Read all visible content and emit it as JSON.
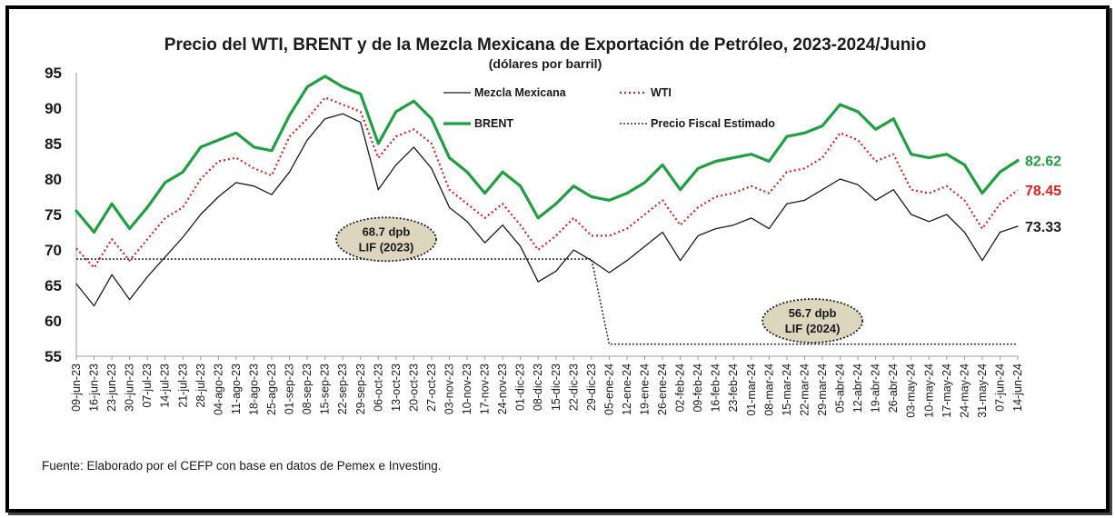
{
  "chart_data": {
    "type": "line",
    "title": "Precio del WTI, BRENT y de la Mezcla Mexicana de Exportación de Petróleo, 2023-2024/Junio",
    "subtitle": "(dólares por barril)",
    "source": "Fuente: Elaborado por el CEFP con base en datos de Pemex e Investing.",
    "ylim": [
      55,
      95
    ],
    "yticks": [
      55,
      60,
      65,
      70,
      75,
      80,
      85,
      90,
      95
    ],
    "grid": false,
    "legend_position": "top-center",
    "x_tick_labels": [
      "09-jun-23",
      "16-jun-23",
      "23-jun-23",
      "30-jun-23",
      "07-jul-23",
      "14-jul-23",
      "21-jul-23",
      "28-jul-23",
      "04-ago-23",
      "11-ago-23",
      "18-ago-23",
      "25-ago-23",
      "01-sep-23",
      "08-sep-23",
      "15-sep-23",
      "22-sep-23",
      "29-sep-23",
      "06-oct-23",
      "13-oct-23",
      "20-oct-23",
      "27-oct-23",
      "03-nov-23",
      "10-nov-23",
      "17-nov-23",
      "24-nov-23",
      "01-dic-23",
      "08-dic-23",
      "15-dic-23",
      "22-dic-23",
      "29-dic-23",
      "05-ene-24",
      "12-ene-24",
      "19-ene-24",
      "26-ene-24",
      "02-feb-24",
      "09-feb-24",
      "16-feb-24",
      "23-feb-24",
      "01-mar-24",
      "08-mar-24",
      "15-mar-24",
      "22-mar-24",
      "29-mar-24",
      "05-abr-24",
      "12-abr-24",
      "19-abr-24",
      "26-abr-24",
      "03-may-24",
      "10-may-24",
      "17-may-24",
      "24-may-24",
      "31-may-24",
      "07-jun-24",
      "14-jun-24"
    ],
    "series": [
      {
        "name": "Mezcla Mexicana",
        "color": "#1a1a1a",
        "style": "solid",
        "end_label": "73.33",
        "values": [
          65.2,
          62.1,
          66.5,
          63.0,
          66.2,
          69.0,
          71.8,
          75.0,
          77.5,
          79.5,
          79.0,
          77.8,
          81.0,
          85.5,
          88.5,
          89.2,
          88.0,
          78.5,
          82.0,
          84.5,
          81.5,
          76.0,
          74.0,
          71.0,
          73.5,
          70.5,
          65.5,
          67.0,
          70.0,
          68.5,
          66.8,
          68.5,
          70.5,
          72.5,
          68.5,
          72.0,
          73.0,
          73.5,
          74.5,
          73.0,
          76.5,
          77.0,
          78.5,
          80.0,
          79.2,
          77.0,
          78.5,
          75.0,
          74.0,
          75.0,
          72.5,
          68.5,
          72.5,
          73.33
        ]
      },
      {
        "name": "WTI",
        "color": "#e02020",
        "style": "dotted",
        "end_label": "78.45",
        "values": [
          70.2,
          67.5,
          71.5,
          68.5,
          71.5,
          74.5,
          76.0,
          80.0,
          82.5,
          83.0,
          81.5,
          80.5,
          86.0,
          88.5,
          91.5,
          90.5,
          89.5,
          83.0,
          86.0,
          87.0,
          85.0,
          78.5,
          76.5,
          74.5,
          76.5,
          73.5,
          70.0,
          72.0,
          74.5,
          72.0,
          72.0,
          73.0,
          75.0,
          77.0,
          73.5,
          76.0,
          77.5,
          78.0,
          79.0,
          78.0,
          81.0,
          81.5,
          83.0,
          86.5,
          85.5,
          82.5,
          83.5,
          78.5,
          78.0,
          79.0,
          77.0,
          73.0,
          76.5,
          78.45
        ]
      },
      {
        "name": "BRENT",
        "color": "#1fa040",
        "style": "solid-thick",
        "end_label": "82.62",
        "values": [
          75.5,
          72.5,
          76.5,
          73.0,
          76.0,
          79.5,
          81.0,
          84.5,
          85.5,
          86.5,
          84.5,
          84.0,
          89.0,
          93.0,
          94.5,
          93.0,
          92.0,
          85.0,
          89.5,
          91.0,
          88.5,
          83.0,
          81.0,
          78.0,
          81.0,
          79.0,
          74.5,
          76.5,
          79.0,
          77.5,
          77.0,
          78.0,
          79.5,
          82.0,
          78.5,
          81.5,
          82.5,
          83.0,
          83.5,
          82.5,
          86.0,
          86.5,
          87.5,
          90.5,
          89.5,
          87.0,
          88.5,
          83.5,
          83.0,
          83.5,
          82.0,
          78.0,
          81.0,
          82.62
        ]
      },
      {
        "name": "Precio Fiscal Estimado",
        "color": "#333333",
        "style": "dotted-fine",
        "segments": [
          {
            "from": "09-jun-23",
            "to": "29-dic-23",
            "value": 68.7
          },
          {
            "from": "05-ene-24",
            "to": "14-jun-24",
            "value": 56.7
          }
        ]
      }
    ],
    "annotations": [
      {
        "line1": "68.7 dpb",
        "line2": "LIF (2023)",
        "x": "27-oct-23",
        "y": 71.5
      },
      {
        "line1": "56.7 dpb",
        "line2": "LIF (2024)",
        "x": "12-abr-24",
        "y": 60.0
      }
    ]
  }
}
